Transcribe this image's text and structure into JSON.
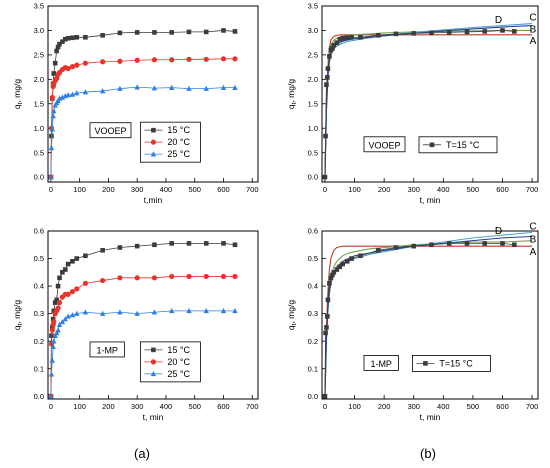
{
  "figure": {
    "captions": [
      "(a)",
      "(b)"
    ]
  },
  "chart_data": [
    {
      "type": "line",
      "panel": "top-left",
      "xlabel": "t,min",
      "ylabel": "q_t, mg/g",
      "xlim": [
        -10,
        720
      ],
      "ylim": [
        -0.1,
        3.5
      ],
      "xticks": [
        "0",
        "100",
        "200",
        "300",
        "400",
        "500",
        "600",
        "700"
      ],
      "yticks": [
        "0.0",
        "0.5",
        "1.0",
        "1.5",
        "2.0",
        "2.5",
        "3.0",
        "3.5"
      ],
      "box_label": "VOOEP",
      "legend": "right",
      "series": [
        {
          "name": "15 °C",
          "color": "#3c3c3c",
          "marker": "square",
          "x": [
            0,
            2,
            5,
            8,
            10,
            15,
            20,
            25,
            30,
            40,
            50,
            60,
            75,
            90,
            120,
            180,
            240,
            300,
            360,
            420,
            480,
            540,
            600,
            640
          ],
          "y": [
            0,
            0.84,
            1.61,
            1.91,
            2.12,
            2.33,
            2.58,
            2.66,
            2.72,
            2.77,
            2.82,
            2.84,
            2.85,
            2.86,
            2.86,
            2.9,
            2.95,
            2.96,
            2.96,
            2.96,
            2.97,
            2.97,
            3.0,
            2.98
          ]
        },
        {
          "name": "20 °C",
          "color": "#e8332c",
          "marker": "circle",
          "x": [
            0,
            2,
            5,
            8,
            10,
            15,
            20,
            25,
            30,
            40,
            50,
            60,
            75,
            90,
            120,
            180,
            240,
            300,
            360,
            420,
            480,
            540,
            600,
            640
          ],
          "y": [
            0,
            1.0,
            1.63,
            1.85,
            1.9,
            1.97,
            2.02,
            2.1,
            2.14,
            2.2,
            2.24,
            2.22,
            2.26,
            2.29,
            2.33,
            2.36,
            2.37,
            2.39,
            2.4,
            2.4,
            2.41,
            2.41,
            2.42,
            2.42
          ]
        },
        {
          "name": "25 °C",
          "color": "#2f7fe3",
          "marker": "triangle",
          "x": [
            0,
            2,
            5,
            8,
            10,
            15,
            20,
            25,
            30,
            40,
            50,
            60,
            75,
            90,
            120,
            180,
            240,
            300,
            360,
            420,
            480,
            540,
            600,
            640
          ],
          "y": [
            0,
            0.6,
            0.98,
            1.25,
            1.35,
            1.47,
            1.52,
            1.56,
            1.61,
            1.63,
            1.66,
            1.68,
            1.69,
            1.72,
            1.74,
            1.76,
            1.81,
            1.84,
            1.82,
            1.83,
            1.81,
            1.81,
            1.83,
            1.83
          ]
        }
      ]
    },
    {
      "type": "line",
      "panel": "top-right",
      "xlabel": "t, min",
      "ylabel": "q_t, mg/g",
      "xlim": [
        -10,
        720
      ],
      "ylim": [
        -0.1,
        3.5
      ],
      "xticks": [
        "0",
        "100",
        "200",
        "300",
        "400",
        "500",
        "600",
        "700"
      ],
      "yticks": [
        "0.0",
        "0.5",
        "1.0",
        "1.5",
        "2.0",
        "2.5",
        "3.0",
        "3.5"
      ],
      "box_label": "VOOEP",
      "legend": "right",
      "series": [
        {
          "name": "T=15 °C",
          "color": "#3c3c3c",
          "marker": "square",
          "x": [
            0,
            2,
            5,
            8,
            10,
            15,
            20,
            25,
            30,
            40,
            50,
            60,
            75,
            90,
            120,
            180,
            240,
            300,
            360,
            420,
            480,
            540,
            600,
            640
          ],
          "y": [
            0,
            0.84,
            1.89,
            2.04,
            2.22,
            2.47,
            2.6,
            2.63,
            2.7,
            2.75,
            2.82,
            2.84,
            2.85,
            2.86,
            2.86,
            2.9,
            2.93,
            2.94,
            2.95,
            2.96,
            2.97,
            2.98,
            3.0,
            2.98
          ]
        }
      ],
      "fits": [
        {
          "label": "A",
          "color": "#c0392b",
          "x": [
            0,
            5,
            10,
            15,
            20,
            30,
            40,
            60,
            80,
            100,
            150,
            200,
            300,
            400,
            500,
            600,
            700
          ],
          "y": [
            0,
            1.5,
            2.3,
            2.65,
            2.8,
            2.88,
            2.9,
            2.91,
            2.91,
            2.91,
            2.91,
            2.91,
            2.91,
            2.91,
            2.91,
            2.91,
            2.91
          ]
        },
        {
          "label": "B",
          "color": "#6aa84f",
          "x": [
            0,
            5,
            10,
            15,
            20,
            30,
            40,
            60,
            80,
            100,
            150,
            200,
            300,
            400,
            500,
            600,
            700
          ],
          "y": [
            0,
            1.55,
            2.3,
            2.58,
            2.7,
            2.8,
            2.84,
            2.88,
            2.9,
            2.91,
            2.93,
            2.95,
            2.97,
            2.98,
            2.99,
            3.0,
            3.0
          ]
        },
        {
          "label": "C",
          "color": "#4aa3c9",
          "x": [
            0,
            5,
            10,
            15,
            20,
            30,
            40,
            60,
            80,
            100,
            150,
            200,
            300,
            400,
            500,
            600,
            700
          ],
          "y": [
            0,
            1.4,
            2.1,
            2.38,
            2.5,
            2.62,
            2.68,
            2.74,
            2.78,
            2.8,
            2.85,
            2.89,
            2.96,
            3.01,
            3.06,
            3.1,
            3.14
          ]
        },
        {
          "label": "D",
          "color": "#2c3e8c",
          "x": [
            0,
            5,
            10,
            15,
            20,
            30,
            40,
            60,
            80,
            100,
            150,
            200,
            300,
            400,
            500,
            600,
            700
          ],
          "y": [
            0,
            1.35,
            2.05,
            2.36,
            2.52,
            2.66,
            2.72,
            2.78,
            2.81,
            2.83,
            2.86,
            2.89,
            2.94,
            2.99,
            3.03,
            3.07,
            3.1
          ]
        }
      ]
    },
    {
      "type": "line",
      "panel": "bottom-left",
      "xlabel": "t, min",
      "ylabel": "q_t, mg/g",
      "xlim": [
        -10,
        720
      ],
      "ylim": [
        -0.01,
        0.6
      ],
      "xticks": [
        "0",
        "100",
        "200",
        "300",
        "400",
        "500",
        "600",
        "700"
      ],
      "yticks": [
        "0.0",
        "0.1",
        "0.2",
        "0.3",
        "0.4",
        "0.5",
        "0.6"
      ],
      "box_label": "1-MP",
      "legend": "right",
      "series": [
        {
          "name": "15 °C",
          "color": "#3c3c3c",
          "marker": "square",
          "x": [
            0,
            2,
            5,
            8,
            10,
            15,
            20,
            25,
            30,
            40,
            50,
            60,
            75,
            90,
            120,
            180,
            240,
            300,
            360,
            420,
            480,
            540,
            600,
            640
          ],
          "y": [
            0,
            0.22,
            0.25,
            0.28,
            0.31,
            0.34,
            0.35,
            0.4,
            0.43,
            0.45,
            0.46,
            0.48,
            0.49,
            0.5,
            0.51,
            0.53,
            0.54,
            0.545,
            0.55,
            0.555,
            0.555,
            0.555,
            0.555,
            0.55
          ]
        },
        {
          "name": "20 °C",
          "color": "#e8332c",
          "marker": "circle",
          "x": [
            0,
            2,
            5,
            8,
            10,
            15,
            20,
            25,
            30,
            40,
            50,
            60,
            75,
            90,
            120,
            180,
            240,
            300,
            360,
            420,
            480,
            540,
            600,
            640
          ],
          "y": [
            0,
            0.19,
            0.24,
            0.26,
            0.27,
            0.3,
            0.31,
            0.32,
            0.34,
            0.36,
            0.37,
            0.37,
            0.38,
            0.39,
            0.41,
            0.42,
            0.43,
            0.43,
            0.43,
            0.435,
            0.435,
            0.435,
            0.435,
            0.435
          ]
        },
        {
          "name": "25 °C",
          "color": "#2f7fe3",
          "marker": "triangle",
          "x": [
            0,
            2,
            5,
            8,
            10,
            15,
            20,
            25,
            30,
            40,
            50,
            60,
            75,
            90,
            120,
            180,
            240,
            300,
            360,
            420,
            480,
            540,
            600,
            640
          ],
          "y": [
            0,
            0.08,
            0.13,
            0.18,
            0.2,
            0.22,
            0.23,
            0.24,
            0.26,
            0.27,
            0.28,
            0.29,
            0.295,
            0.3,
            0.305,
            0.3,
            0.305,
            0.3,
            0.305,
            0.31,
            0.31,
            0.31,
            0.31,
            0.31
          ]
        }
      ]
    },
    {
      "type": "line",
      "panel": "bottom-right",
      "xlabel": "t, min",
      "ylabel": "q_t, mg/g",
      "xlim": [
        -10,
        720
      ],
      "ylim": [
        -0.01,
        0.6
      ],
      "xticks": [
        "0",
        "100",
        "200",
        "300",
        "400",
        "500",
        "600",
        "700"
      ],
      "yticks": [
        "0.0",
        "0.1",
        "0.2",
        "0.3",
        "0.4",
        "0.5",
        "0.6"
      ],
      "box_label": "1-MP",
      "legend": "right",
      "series": [
        {
          "name": "T=15 °C",
          "color": "#3c3c3c",
          "marker": "square",
          "x": [
            0,
            2,
            5,
            8,
            10,
            15,
            20,
            25,
            30,
            40,
            50,
            60,
            75,
            90,
            120,
            180,
            240,
            300,
            360,
            420,
            480,
            540,
            600,
            640
          ],
          "y": [
            0,
            0.23,
            0.25,
            0.29,
            0.35,
            0.41,
            0.43,
            0.44,
            0.45,
            0.46,
            0.47,
            0.48,
            0.49,
            0.5,
            0.51,
            0.53,
            0.54,
            0.545,
            0.55,
            0.555,
            0.555,
            0.555,
            0.555,
            0.55
          ]
        }
      ],
      "fits": [
        {
          "label": "A",
          "color": "#c0392b",
          "x": [
            0,
            5,
            10,
            15,
            20,
            30,
            40,
            60,
            80,
            100,
            150,
            200,
            300,
            400,
            500,
            600,
            700
          ],
          "y": [
            0,
            0.25,
            0.38,
            0.46,
            0.5,
            0.53,
            0.54,
            0.545,
            0.545,
            0.545,
            0.545,
            0.545,
            0.545,
            0.545,
            0.545,
            0.545,
            0.545
          ]
        },
        {
          "label": "B",
          "color": "#6aa84f",
          "x": [
            0,
            5,
            10,
            15,
            20,
            30,
            40,
            60,
            80,
            100,
            150,
            200,
            300,
            400,
            500,
            600,
            700
          ],
          "y": [
            0,
            0.22,
            0.34,
            0.4,
            0.44,
            0.47,
            0.49,
            0.51,
            0.52,
            0.525,
            0.535,
            0.54,
            0.55,
            0.555,
            0.56,
            0.56,
            0.565
          ]
        },
        {
          "label": "C",
          "color": "#4aa3c9",
          "x": [
            0,
            5,
            10,
            15,
            20,
            30,
            40,
            60,
            80,
            100,
            150,
            200,
            300,
            400,
            500,
            600,
            700
          ],
          "y": [
            0,
            0.2,
            0.31,
            0.37,
            0.41,
            0.44,
            0.46,
            0.48,
            0.49,
            0.5,
            0.515,
            0.525,
            0.545,
            0.56,
            0.575,
            0.585,
            0.595
          ]
        },
        {
          "label": "D",
          "color": "#2c3e8c",
          "x": [
            0,
            5,
            10,
            15,
            20,
            30,
            40,
            60,
            80,
            100,
            150,
            200,
            300,
            400,
            500,
            600,
            700
          ],
          "y": [
            0,
            0.21,
            0.32,
            0.38,
            0.42,
            0.45,
            0.47,
            0.49,
            0.5,
            0.51,
            0.52,
            0.53,
            0.545,
            0.555,
            0.565,
            0.575,
            0.58
          ]
        }
      ]
    }
  ]
}
